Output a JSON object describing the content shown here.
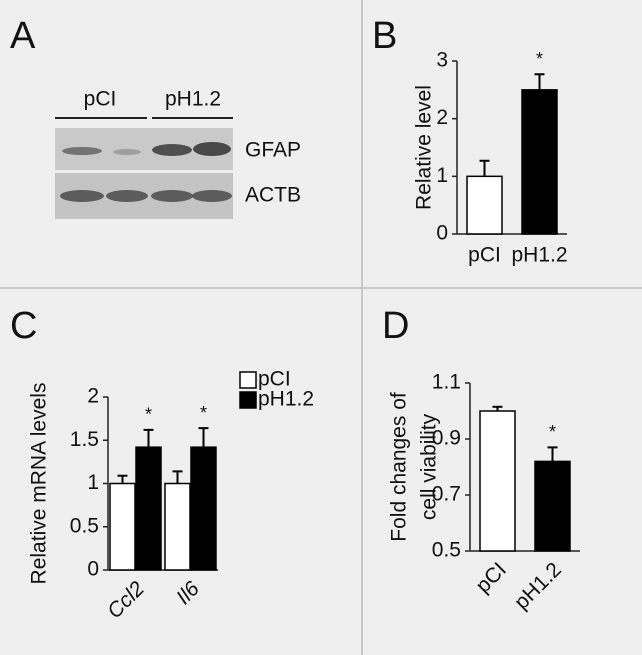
{
  "panel_labels": [
    "A",
    "B",
    "C",
    "D"
  ],
  "blot": {
    "groups": [
      "pCI",
      "pH1.2"
    ],
    "bands": [
      "GFAP",
      "ACTB"
    ]
  },
  "chart_data": [
    {
      "type": "bar",
      "ylabel": [
        "Relative level"
      ],
      "categories": [
        "pCI",
        "pH1.2"
      ],
      "values": [
        1.0,
        2.5
      ],
      "errors": [
        0.27,
        0.27
      ],
      "colors": [
        "#ffffff",
        "#000000"
      ],
      "annotations": [
        null,
        "*"
      ],
      "ylim": [
        0,
        3
      ],
      "yticks": [
        0,
        1,
        2,
        3
      ]
    },
    {
      "type": "grouped-bar",
      "ylabel": [
        "Relative mRNA levels"
      ],
      "categories": [
        "Ccl2",
        "Il6"
      ],
      "series": [
        {
          "name": "pCI",
          "color": "#ffffff",
          "values": [
            1.0,
            1.0
          ],
          "errors": [
            0.09,
            0.14
          ],
          "annotations": [
            null,
            null
          ]
        },
        {
          "name": "pH1.2",
          "color": "#000000",
          "values": [
            1.42,
            1.42
          ],
          "errors": [
            0.2,
            0.22
          ],
          "annotations": [
            "*",
            "*"
          ]
        }
      ],
      "ylim": [
        0,
        2
      ],
      "yticks": [
        0,
        0.5,
        1,
        1.5,
        2
      ],
      "legend": "top-right"
    },
    {
      "type": "bar",
      "ylabel": [
        "Fold changes of",
        "cell viability"
      ],
      "categories": [
        "pCI",
        "pH1.2"
      ],
      "values": [
        1.0,
        0.82
      ],
      "errors": [
        0.015,
        0.05
      ],
      "colors": [
        "#ffffff",
        "#000000"
      ],
      "annotations": [
        null,
        "*"
      ],
      "ylim": [
        0.5,
        1.1
      ],
      "yticks": [
        0.5,
        0.7,
        0.9,
        1.1
      ]
    }
  ]
}
